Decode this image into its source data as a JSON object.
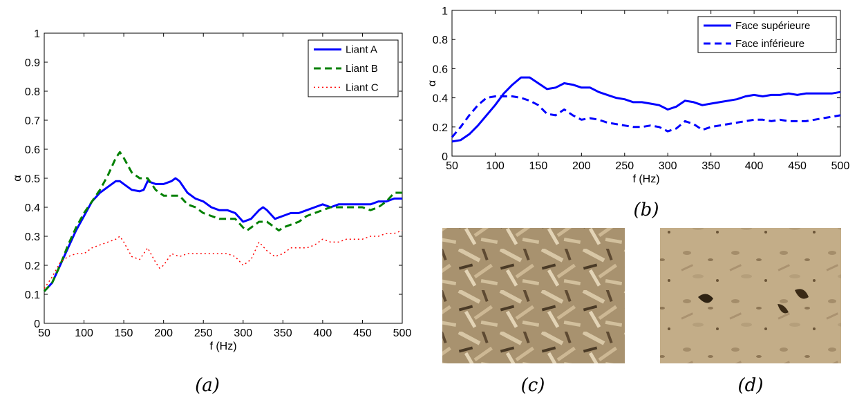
{
  "chart_data": [
    {
      "type": "line",
      "panel_label": "(a)",
      "xlabel": "f (Hz)",
      "ylabel": "α",
      "xlim": [
        50,
        500
      ],
      "ylim": [
        0,
        1
      ],
      "xticks": [
        50,
        100,
        150,
        200,
        250,
        300,
        350,
        400,
        450,
        500
      ],
      "yticks": [
        0,
        0.1,
        0.2,
        0.3,
        0.4,
        0.5,
        0.6,
        0.7,
        0.8,
        0.9,
        1
      ],
      "ytick_labels": [
        "0",
        "0.1",
        "0.2",
        "0.3",
        "0.4",
        "0.5",
        "0.6",
        "0.7",
        "0.8",
        "0.9",
        "1"
      ],
      "grid": false,
      "legend": "top-right",
      "series": [
        {
          "name": "Liant A",
          "color": "#0000ff",
          "style": "solid",
          "points": [
            [
              50,
              0.11
            ],
            [
              60,
              0.14
            ],
            [
              70,
              0.2
            ],
            [
              80,
              0.26
            ],
            [
              90,
              0.32
            ],
            [
              100,
              0.37
            ],
            [
              110,
              0.42
            ],
            [
              120,
              0.45
            ],
            [
              130,
              0.47
            ],
            [
              140,
              0.49
            ],
            [
              145,
              0.49
            ],
            [
              150,
              0.48
            ],
            [
              160,
              0.46
            ],
            [
              170,
              0.455
            ],
            [
              175,
              0.46
            ],
            [
              180,
              0.49
            ],
            [
              190,
              0.48
            ],
            [
              200,
              0.48
            ],
            [
              210,
              0.49
            ],
            [
              215,
              0.5
            ],
            [
              220,
              0.49
            ],
            [
              230,
              0.45
            ],
            [
              240,
              0.43
            ],
            [
              250,
              0.42
            ],
            [
              260,
              0.4
            ],
            [
              270,
              0.39
            ],
            [
              280,
              0.39
            ],
            [
              290,
              0.38
            ],
            [
              300,
              0.35
            ],
            [
              310,
              0.36
            ],
            [
              320,
              0.39
            ],
            [
              325,
              0.4
            ],
            [
              330,
              0.39
            ],
            [
              340,
              0.36
            ],
            [
              350,
              0.37
            ],
            [
              360,
              0.38
            ],
            [
              370,
              0.38
            ],
            [
              380,
              0.39
            ],
            [
              390,
              0.4
            ],
            [
              400,
              0.41
            ],
            [
              410,
              0.4
            ],
            [
              420,
              0.41
            ],
            [
              430,
              0.41
            ],
            [
              440,
              0.41
            ],
            [
              450,
              0.41
            ],
            [
              460,
              0.41
            ],
            [
              470,
              0.42
            ],
            [
              480,
              0.42
            ],
            [
              490,
              0.43
            ],
            [
              500,
              0.43
            ]
          ]
        },
        {
          "name": "Liant B",
          "color": "#008000",
          "style": "dashed",
          "points": [
            [
              50,
              0.11
            ],
            [
              60,
              0.14
            ],
            [
              70,
              0.2
            ],
            [
              80,
              0.27
            ],
            [
              90,
              0.33
            ],
            [
              100,
              0.38
            ],
            [
              110,
              0.42
            ],
            [
              120,
              0.46
            ],
            [
              130,
              0.51
            ],
            [
              140,
              0.57
            ],
            [
              145,
              0.59
            ],
            [
              150,
              0.57
            ],
            [
              160,
              0.52
            ],
            [
              170,
              0.5
            ],
            [
              180,
              0.5
            ],
            [
              190,
              0.46
            ],
            [
              200,
              0.44
            ],
            [
              210,
              0.44
            ],
            [
              220,
              0.44
            ],
            [
              230,
              0.41
            ],
            [
              240,
              0.4
            ],
            [
              250,
              0.38
            ],
            [
              260,
              0.37
            ],
            [
              270,
              0.36
            ],
            [
              280,
              0.36
            ],
            [
              290,
              0.36
            ],
            [
              300,
              0.33
            ],
            [
              305,
              0.32
            ],
            [
              310,
              0.33
            ],
            [
              320,
              0.35
            ],
            [
              330,
              0.35
            ],
            [
              340,
              0.33
            ],
            [
              345,
              0.32
            ],
            [
              350,
              0.33
            ],
            [
              360,
              0.34
            ],
            [
              370,
              0.35
            ],
            [
              380,
              0.37
            ],
            [
              390,
              0.38
            ],
            [
              400,
              0.39
            ],
            [
              410,
              0.4
            ],
            [
              420,
              0.4
            ],
            [
              430,
              0.4
            ],
            [
              440,
              0.4
            ],
            [
              450,
              0.4
            ],
            [
              460,
              0.39
            ],
            [
              470,
              0.4
            ],
            [
              480,
              0.42
            ],
            [
              490,
              0.45
            ],
            [
              500,
              0.45
            ]
          ]
        },
        {
          "name": "Liant C",
          "color": "#ff0000",
          "style": "dotted",
          "points": [
            [
              50,
              0.12
            ],
            [
              60,
              0.16
            ],
            [
              70,
              0.21
            ],
            [
              80,
              0.23
            ],
            [
              90,
              0.24
            ],
            [
              100,
              0.24
            ],
            [
              110,
              0.26
            ],
            [
              120,
              0.27
            ],
            [
              130,
              0.28
            ],
            [
              140,
              0.29
            ],
            [
              145,
              0.3
            ],
            [
              150,
              0.28
            ],
            [
              160,
              0.23
            ],
            [
              170,
              0.22
            ],
            [
              180,
              0.26
            ],
            [
              190,
              0.21
            ],
            [
              195,
              0.19
            ],
            [
              200,
              0.2
            ],
            [
              210,
              0.24
            ],
            [
              220,
              0.23
            ],
            [
              230,
              0.24
            ],
            [
              240,
              0.24
            ],
            [
              250,
              0.24
            ],
            [
              260,
              0.24
            ],
            [
              270,
              0.24
            ],
            [
              280,
              0.24
            ],
            [
              290,
              0.23
            ],
            [
              300,
              0.2
            ],
            [
              310,
              0.22
            ],
            [
              320,
              0.28
            ],
            [
              330,
              0.25
            ],
            [
              340,
              0.23
            ],
            [
              350,
              0.24
            ],
            [
              360,
              0.26
            ],
            [
              370,
              0.26
            ],
            [
              380,
              0.26
            ],
            [
              390,
              0.27
            ],
            [
              400,
              0.29
            ],
            [
              410,
              0.28
            ],
            [
              420,
              0.28
            ],
            [
              430,
              0.29
            ],
            [
              440,
              0.29
            ],
            [
              450,
              0.29
            ],
            [
              460,
              0.3
            ],
            [
              470,
              0.3
            ],
            [
              480,
              0.31
            ],
            [
              490,
              0.31
            ],
            [
              500,
              0.32
            ]
          ]
        }
      ]
    },
    {
      "type": "line",
      "panel_label": "(b)",
      "xlabel": "f (Hz)",
      "ylabel": "α",
      "xlim": [
        50,
        500
      ],
      "ylim": [
        0,
        1
      ],
      "xticks": [
        50,
        100,
        150,
        200,
        250,
        300,
        350,
        400,
        450,
        500
      ],
      "yticks": [
        0,
        0.2,
        0.4,
        0.6,
        0.8,
        1
      ],
      "ytick_labels": [
        "0",
        "0.2",
        "0.4",
        "0.6",
        "0.8",
        "1"
      ],
      "grid": false,
      "legend": "top-right",
      "series": [
        {
          "name": "Face supérieure",
          "color": "#0000ff",
          "style": "solid",
          "points": [
            [
              50,
              0.1
            ],
            [
              60,
              0.11
            ],
            [
              70,
              0.15
            ],
            [
              80,
              0.21
            ],
            [
              90,
              0.28
            ],
            [
              100,
              0.35
            ],
            [
              110,
              0.43
            ],
            [
              120,
              0.49
            ],
            [
              130,
              0.54
            ],
            [
              140,
              0.54
            ],
            [
              150,
              0.5
            ],
            [
              160,
              0.46
            ],
            [
              170,
              0.47
            ],
            [
              180,
              0.5
            ],
            [
              190,
              0.49
            ],
            [
              200,
              0.47
            ],
            [
              210,
              0.47
            ],
            [
              220,
              0.44
            ],
            [
              230,
              0.42
            ],
            [
              240,
              0.4
            ],
            [
              250,
              0.39
            ],
            [
              260,
              0.37
            ],
            [
              270,
              0.37
            ],
            [
              280,
              0.36
            ],
            [
              290,
              0.35
            ],
            [
              300,
              0.32
            ],
            [
              310,
              0.34
            ],
            [
              320,
              0.38
            ],
            [
              330,
              0.37
            ],
            [
              340,
              0.35
            ],
            [
              350,
              0.36
            ],
            [
              360,
              0.37
            ],
            [
              370,
              0.38
            ],
            [
              380,
              0.39
            ],
            [
              390,
              0.41
            ],
            [
              400,
              0.42
            ],
            [
              410,
              0.41
            ],
            [
              420,
              0.42
            ],
            [
              430,
              0.42
            ],
            [
              440,
              0.43
            ],
            [
              450,
              0.42
            ],
            [
              460,
              0.43
            ],
            [
              470,
              0.43
            ],
            [
              480,
              0.43
            ],
            [
              490,
              0.43
            ],
            [
              500,
              0.44
            ]
          ]
        },
        {
          "name": "Face inférieure",
          "color": "#0000ff",
          "style": "dashed",
          "points": [
            [
              50,
              0.13
            ],
            [
              60,
              0.2
            ],
            [
              70,
              0.28
            ],
            [
              80,
              0.35
            ],
            [
              90,
              0.4
            ],
            [
              100,
              0.41
            ],
            [
              110,
              0.41
            ],
            [
              120,
              0.41
            ],
            [
              130,
              0.4
            ],
            [
              140,
              0.38
            ],
            [
              150,
              0.35
            ],
            [
              160,
              0.29
            ],
            [
              170,
              0.28
            ],
            [
              180,
              0.32
            ],
            [
              190,
              0.28
            ],
            [
              200,
              0.25
            ],
            [
              210,
              0.26
            ],
            [
              220,
              0.25
            ],
            [
              230,
              0.23
            ],
            [
              240,
              0.22
            ],
            [
              250,
              0.21
            ],
            [
              260,
              0.2
            ],
            [
              270,
              0.2
            ],
            [
              280,
              0.21
            ],
            [
              290,
              0.2
            ],
            [
              300,
              0.17
            ],
            [
              310,
              0.19
            ],
            [
              320,
              0.24
            ],
            [
              330,
              0.22
            ],
            [
              340,
              0.18
            ],
            [
              350,
              0.2
            ],
            [
              360,
              0.21
            ],
            [
              370,
              0.22
            ],
            [
              380,
              0.23
            ],
            [
              390,
              0.24
            ],
            [
              400,
              0.25
            ],
            [
              410,
              0.25
            ],
            [
              420,
              0.24
            ],
            [
              430,
              0.25
            ],
            [
              440,
              0.24
            ],
            [
              450,
              0.24
            ],
            [
              460,
              0.24
            ],
            [
              470,
              0.25
            ],
            [
              480,
              0.26
            ],
            [
              490,
              0.27
            ],
            [
              500,
              0.28
            ]
          ]
        }
      ]
    }
  ],
  "photos": [
    {
      "panel_label": "(c)"
    },
    {
      "panel_label": "(d)"
    }
  ]
}
